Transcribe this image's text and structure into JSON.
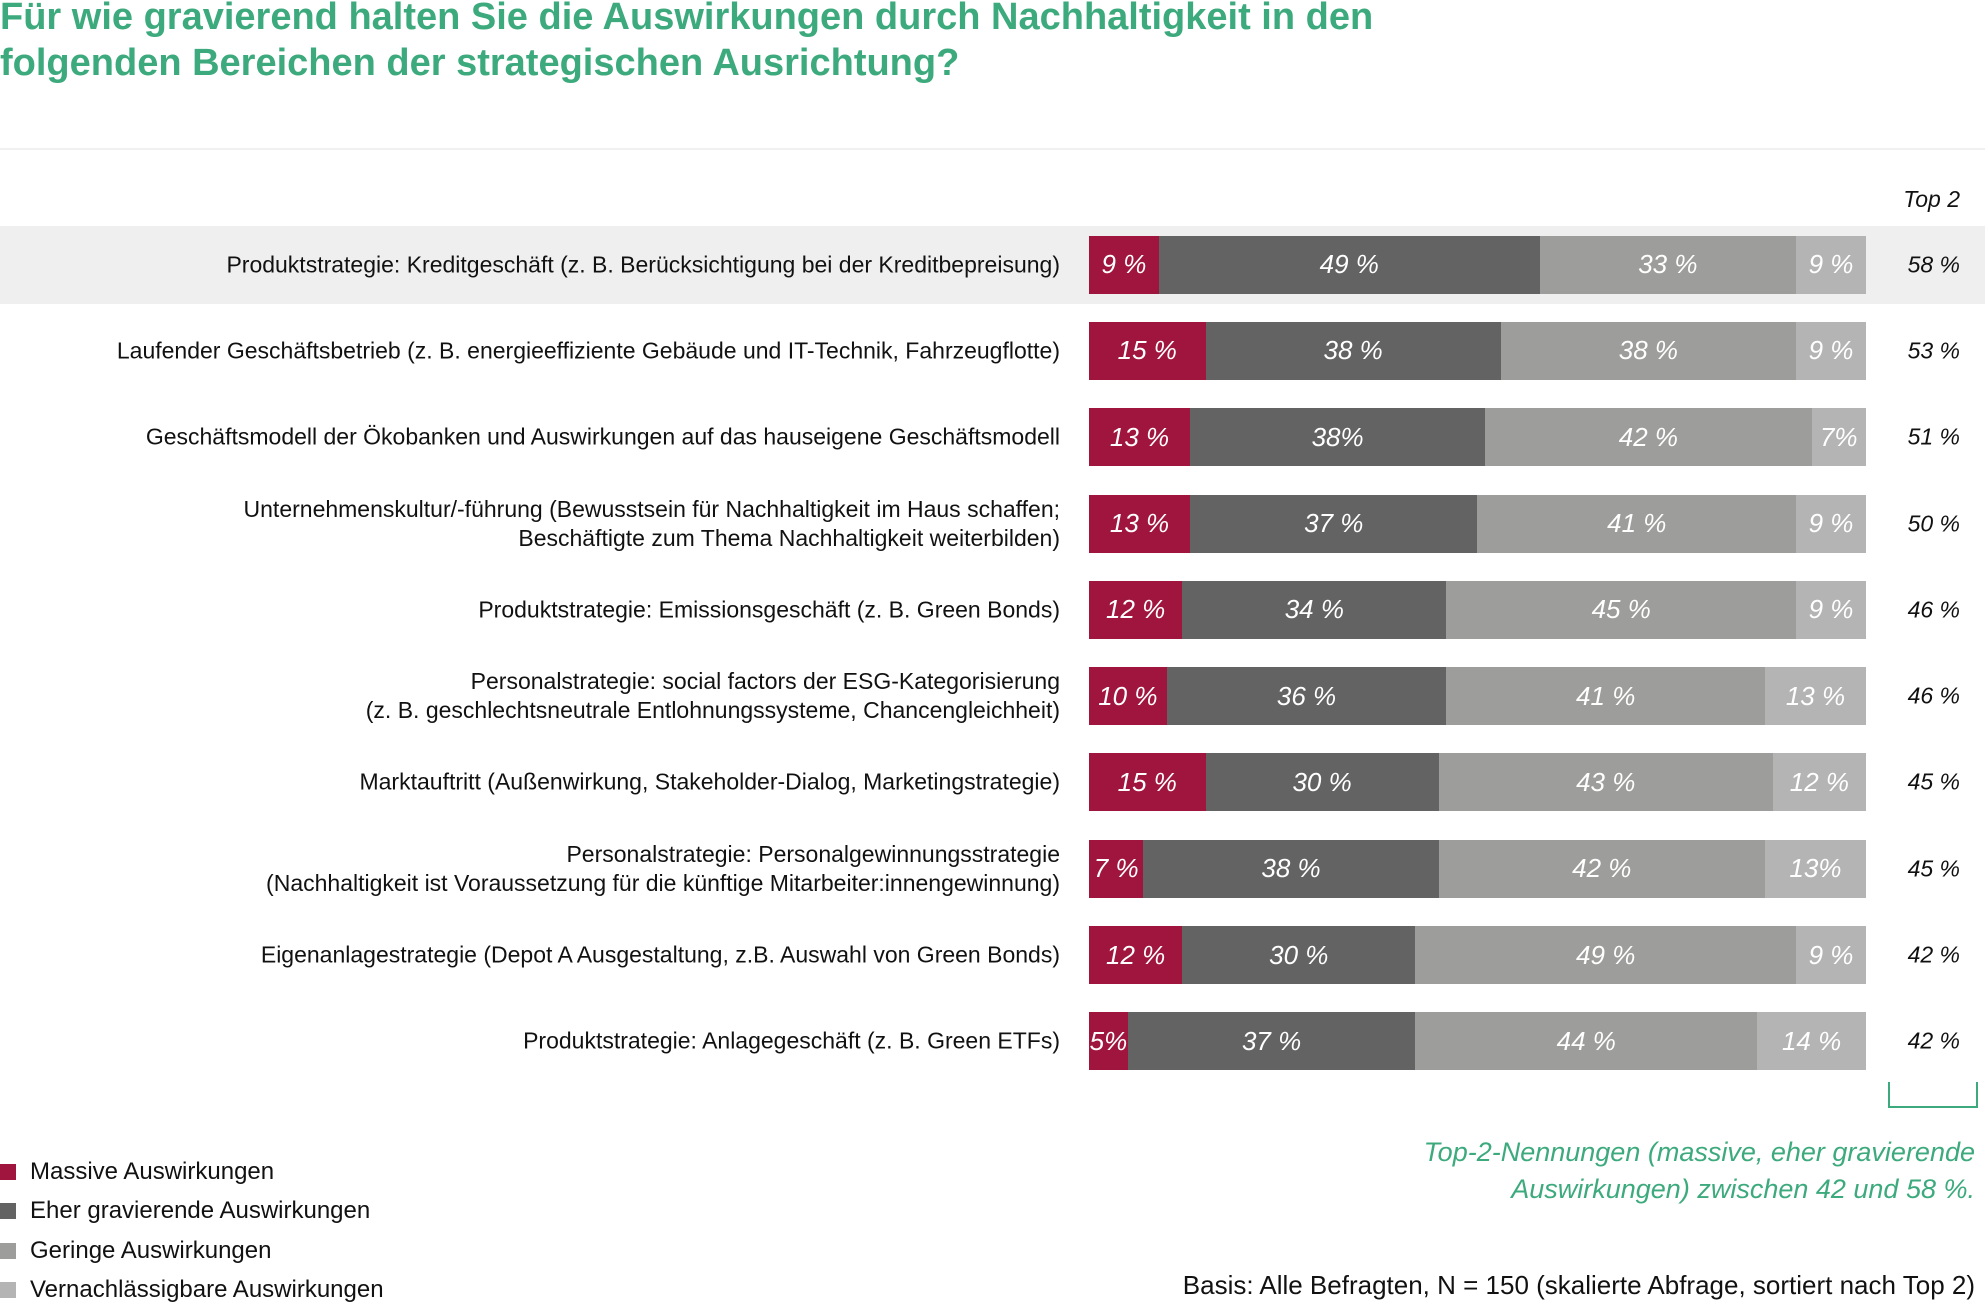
{
  "title": [
    "Für wie gravierend halten Sie die Auswirkungen durch Nachhaltigkeit in den",
    "folgenden Bereichen der strategischen Ausrichtung?"
  ],
  "top2_header": "Top 2",
  "chart_data": {
    "type": "bar",
    "orientation": "horizontal",
    "stacked": true,
    "series_names": [
      "Massive Auswirkungen",
      "Eher gravierende Auswirkungen",
      "Geringe Auswirkungen",
      "Vernachlässigbare Auswirkungen"
    ],
    "colors": [
      "#a0153e",
      "#636363",
      "#9d9d9b",
      "#b4b4b4"
    ],
    "rows": [
      {
        "label": [
          "Produktstrategie: Kreditgeschäft (z. B. Berücksichtigung bei der Kreditbepreisung)"
        ],
        "values": [
          9,
          49,
          33,
          9
        ],
        "value_labels": [
          "9 %",
          "49 %",
          "33 %",
          "9 %"
        ],
        "top2": "58 %",
        "highlight": true
      },
      {
        "label": [
          "Laufender Geschäftsbetrieb (z. B. energieeffiziente Gebäude und IT-Technik, Fahrzeugflotte)"
        ],
        "values": [
          15,
          38,
          38,
          9
        ],
        "value_labels": [
          "15 %",
          "38 %",
          "38 %",
          "9 %"
        ],
        "top2": "53 %"
      },
      {
        "label": [
          "Geschäftsmodell der Ökobanken und Auswirkungen auf das hauseigene Geschäftsmodell"
        ],
        "values": [
          13,
          38,
          42,
          7
        ],
        "value_labels": [
          "13 %",
          "38%",
          "42 %",
          "7%"
        ],
        "top2": "51 %"
      },
      {
        "label": [
          "Unternehmenskultur/-führung (Bewusstsein für Nachhaltigkeit im Haus schaffen;",
          "Beschäftigte zum Thema Nachhaltigkeit weiterbilden)"
        ],
        "values": [
          13,
          37,
          41,
          9
        ],
        "value_labels": [
          "13 %",
          "37 %",
          "41 %",
          "9 %"
        ],
        "top2": "50 %"
      },
      {
        "label": [
          "Produktstrategie: Emissionsgeschäft (z. B. Green Bonds)"
        ],
        "values": [
          12,
          34,
          45,
          9
        ],
        "value_labels": [
          "12 %",
          "34 %",
          "45 %",
          "9 %"
        ],
        "top2": "46 %"
      },
      {
        "label": [
          "Personalstrategie: social factors der ESG-Kategorisierung",
          "(z. B. geschlechtsneutrale Entlohnungssysteme, Chancengleichheit)"
        ],
        "values": [
          10,
          36,
          41,
          13
        ],
        "value_labels": [
          "10 %",
          "36 %",
          "41 %",
          "13 %"
        ],
        "top2": "46 %"
      },
      {
        "label": [
          "Marktauftritt (Außenwirkung, Stakeholder-Dialog, Marketingstrategie)"
        ],
        "values": [
          15,
          30,
          43,
          12
        ],
        "value_labels": [
          "15 %",
          "30 %",
          "43 %",
          "12 %"
        ],
        "top2": "45 %"
      },
      {
        "label": [
          "Personalstrategie: Personalgewinnungsstrategie",
          "(Nachhaltigkeit ist Voraussetzung für die künftige Mitarbeiter:innengewinnung)"
        ],
        "values": [
          7,
          38,
          42,
          13
        ],
        "value_labels": [
          "7 %",
          "38 %",
          "42 %",
          "13%"
        ],
        "top2": "45 %"
      },
      {
        "label": [
          "Eigenanlagestrategie (Depot A Ausgestaltung, z.B. Auswahl von Green Bonds)"
        ],
        "values": [
          12,
          30,
          49,
          9
        ],
        "value_labels": [
          "12 %",
          "30 %",
          "49 %",
          "9 %"
        ],
        "top2": "42 %"
      },
      {
        "label": [
          "Produktstrategie: Anlagegeschäft (z. B. Green ETFs)"
        ],
        "values": [
          5,
          37,
          44,
          14
        ],
        "value_labels": [
          "5%",
          "37 %",
          "44 %",
          "14 %"
        ],
        "top2": "42 %"
      }
    ],
    "legend_placement": "bottom-left"
  },
  "note": [
    "Top-2-Nennungen (massive, eher gravierende",
    "Auswirkungen) zwischen 42 und 58 %."
  ],
  "basis": "Basis: Alle Befragten, N = 150 (skalierte Abfrage, sortiert nach Top 2)"
}
